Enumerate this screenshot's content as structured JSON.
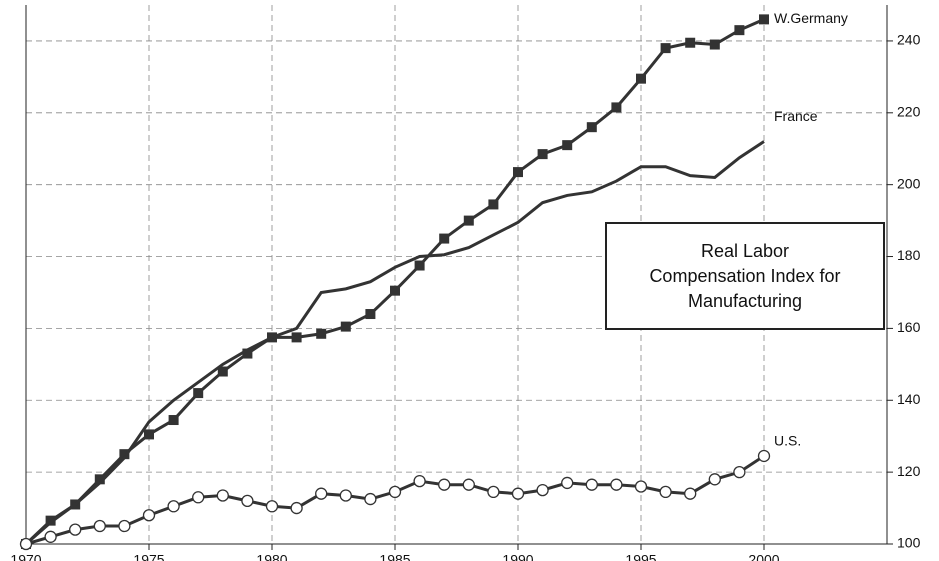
{
  "chart_data": {
    "type": "line",
    "title": [
      "Real Labor",
      "Compensation Index for",
      "Manufacturing"
    ],
    "x": [
      1970,
      1971,
      1972,
      1973,
      1974,
      1975,
      1976,
      1977,
      1978,
      1979,
      1980,
      1981,
      1982,
      1983,
      1984,
      1985,
      1986,
      1987,
      1988,
      1989,
      1990,
      1991,
      1992,
      1993,
      1994,
      1995,
      1996,
      1997,
      1998,
      1999,
      2000
    ],
    "series": [
      {
        "name": "W.Germany",
        "color": "#333333",
        "marker": "square",
        "values": [
          100,
          106.5,
          111,
          118,
          125,
          130.5,
          134.5,
          142,
          148,
          153,
          157.5,
          157.5,
          158.5,
          160.5,
          164,
          170.5,
          177.5,
          185,
          190,
          194.5,
          203.5,
          208.5,
          211,
          216,
          221.5,
          229.5,
          238,
          239.5,
          239,
          243,
          246
        ]
      },
      {
        "name": "France",
        "color": "#333333",
        "marker": "none",
        "values": [
          100,
          106,
          111,
          117,
          124,
          134,
          140,
          145,
          150,
          154,
          157.5,
          160,
          170,
          171,
          173,
          177,
          180,
          180.5,
          182.5,
          186,
          189.5,
          195,
          197,
          198,
          201,
          205,
          205,
          202.5,
          202,
          207.5,
          212
        ]
      },
      {
        "name": "U.S.",
        "color": "#333333",
        "marker": "circle",
        "values": [
          100,
          102,
          104,
          105,
          105,
          108,
          110.5,
          113,
          113.5,
          112,
          110.5,
          110,
          114,
          113.5,
          112.5,
          114.5,
          117.5,
          116.5,
          116.5,
          114.5,
          114,
          115,
          117,
          116.5,
          116.5,
          116,
          114.5,
          114,
          118,
          120,
          124.5
        ]
      }
    ],
    "xlim": [
      1970,
      2005
    ],
    "xticks": [
      1970,
      1975,
      1980,
      1985,
      1990,
      1995,
      2000
    ],
    "ylim": [
      100,
      250
    ],
    "yticks": [
      100,
      120,
      140,
      160,
      180,
      200,
      220,
      240
    ],
    "grid": true
  }
}
